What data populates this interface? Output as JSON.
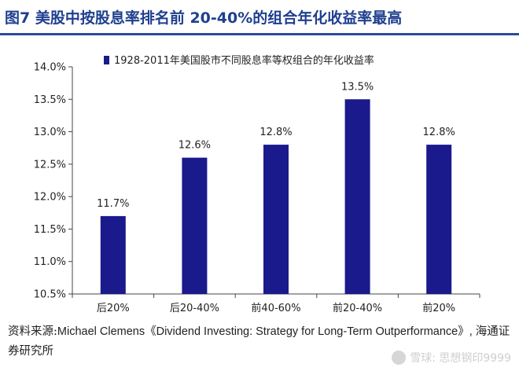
{
  "figure": {
    "title": "图7  美股中按股息率排名前 20-40%的组合年化收益率最高",
    "source_label": "资料来源:",
    "source_text": "Michael Clemens《Dividend Investing: Strategy for Long-Term Outperformance》, 海通证券研究所"
  },
  "watermark": {
    "icon": "snowball-logo-icon",
    "text": "雪球: 思想钢印9999"
  },
  "chart_data": {
    "type": "bar",
    "categories": [
      "后20%",
      "后20-40%",
      "前40-60%",
      "前20-40%",
      "前20%"
    ],
    "series": [
      {
        "name": "1928-2011年美国股市不同股息率等权组合的年化收益率",
        "values": [
          11.7,
          12.6,
          12.8,
          13.5,
          12.8
        ],
        "labels": [
          "11.7%",
          "12.6%",
          "12.8%",
          "13.5%",
          "12.8%"
        ]
      }
    ],
    "ylim": [
      10.5,
      14.0
    ],
    "yticks": [
      "10.5%",
      "11.0%",
      "11.5%",
      "12.0%",
      "12.5%",
      "13.0%",
      "13.5%",
      "14.0%"
    ],
    "ytick_values": [
      10.5,
      11.0,
      11.5,
      12.0,
      12.5,
      13.0,
      13.5,
      14.0
    ],
    "bar_color": "#1a1a8c",
    "grid": false,
    "legend_position": "top-left"
  }
}
